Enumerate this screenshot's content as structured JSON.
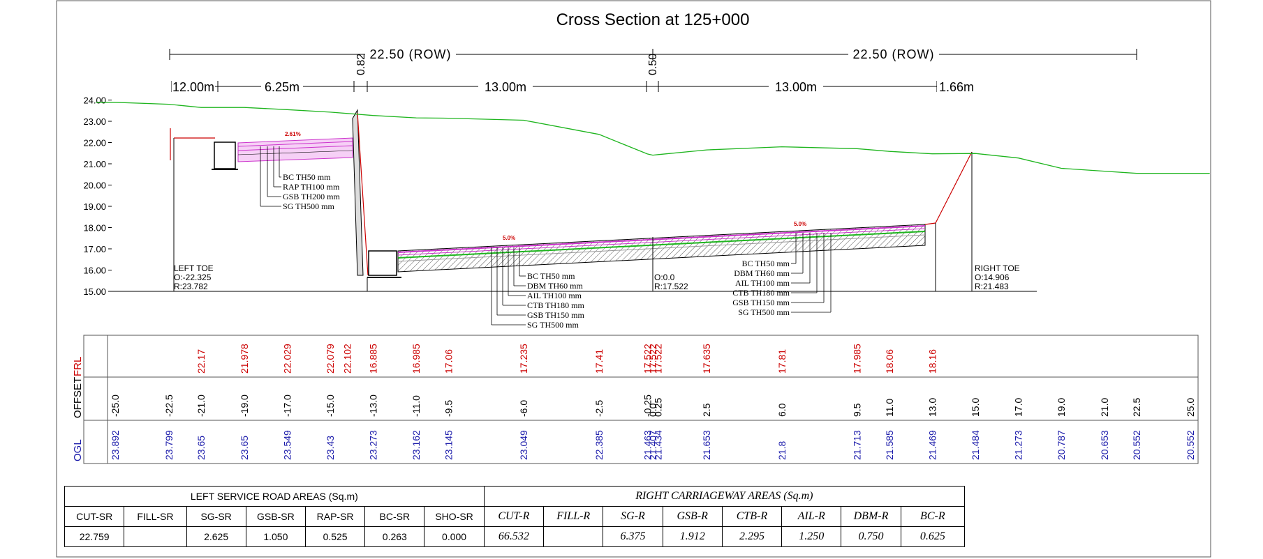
{
  "title": "Cross Section at 125+000",
  "dimensions": {
    "row_left": "22.50 (ROW)",
    "row_right": "22.50 (ROW)",
    "segments": [
      "12.00m",
      "6.25m",
      "0.82",
      "13.00m",
      "0.50",
      "13.00m",
      "1.66m"
    ]
  },
  "y_axis": {
    "min": 15.0,
    "max": 24.0,
    "ticks": [
      "24.00",
      "23.00",
      "22.00",
      "21.00",
      "20.00",
      "19.00",
      "18.00",
      "17.00",
      "16.00",
      "15.00"
    ]
  },
  "left_toe": {
    "label": "LEFT TOE",
    "offset": "O:-22.325",
    "level": "R:23.782"
  },
  "right_toe": {
    "label": "RIGHT TOE",
    "offset": "O:14.906",
    "level": "R:21.483"
  },
  "centre": {
    "offset": "O:0.0",
    "level": "R:17.522"
  },
  "slope_labels": {
    "service_road": "2.61%",
    "left_cw": "5.0%",
    "right_cw": "5.0%"
  },
  "layers_service_road": [
    "BC TH50 mm",
    "RAP TH100 mm",
    "GSB TH200 mm",
    "SG TH500 mm"
  ],
  "layers_left_cw": [
    "BC TH50 mm",
    "DBM TH60 mm",
    "AIL TH100 mm",
    "CTB TH180 mm",
    "GSB TH150 mm",
    "SG TH500 mm"
  ],
  "layers_right_cw": [
    "BC TH50 mm",
    "DBM TH60 mm",
    "AIL TH100 mm",
    "CTB TH180 mm",
    "GSB TH150 mm",
    "SG TH500 mm"
  ],
  "chart_data": {
    "type": "line",
    "title": "Cross Section at 125+000",
    "ylim": [
      15.0,
      24.0
    ],
    "series": [
      {
        "name": "OGL",
        "x": [
          -25.0,
          -22.5,
          -21.0,
          -19.0,
          -17.0,
          -15.0,
          -13.0,
          -11.0,
          -9.5,
          -6.0,
          -2.5,
          -0.25,
          0.0,
          0.25,
          2.5,
          6.0,
          9.5,
          11.0,
          13.0,
          15.0,
          17.0,
          19.0,
          21.0,
          22.5,
          25.0
        ],
        "y": [
          23.892,
          23.799,
          23.65,
          23.65,
          23.549,
          23.43,
          23.273,
          23.162,
          23.145,
          23.049,
          22.385,
          21.463,
          21.407,
          21.434,
          21.653,
          21.8,
          21.713,
          21.585,
          21.469,
          21.484,
          21.273,
          20.787,
          20.653,
          20.552,
          20.552
        ]
      },
      {
        "name": "FRL",
        "x": [
          -21.0,
          -19.0,
          -17.0,
          -15.0,
          -14.2,
          -13.0,
          -11.0,
          -9.5,
          -6.0,
          -2.5,
          -0.25,
          0.0,
          0.25,
          2.5,
          6.0,
          9.5,
          11.0,
          13.0
        ],
        "y": [
          22.17,
          21.978,
          22.029,
          22.079,
          22.102,
          16.885,
          16.985,
          17.06,
          17.235,
          17.41,
          17.522,
          17.522,
          17.522,
          17.635,
          17.81,
          17.985,
          18.06,
          18.16
        ]
      }
    ]
  },
  "band": {
    "rows": [
      "FRL",
      "OFFSET",
      "OGL"
    ],
    "frl": [
      {
        "v": "22.17",
        "x": -21.0
      },
      {
        "v": "21.978",
        "x": -19.0
      },
      {
        "v": "22.029",
        "x": -17.0
      },
      {
        "v": "22.079",
        "x": -15.0
      },
      {
        "v": "22.102",
        "x": -14.2
      },
      {
        "v": "16.885",
        "x": -13.0
      },
      {
        "v": "16.985",
        "x": -11.0
      },
      {
        "v": "17.06",
        "x": -9.5
      },
      {
        "v": "17.235",
        "x": -6.0
      },
      {
        "v": "17.41",
        "x": -2.5
      },
      {
        "v": "17.522",
        "x": -0.25
      },
      {
        "v": "17.522",
        "x": 0.0
      },
      {
        "v": "17.522",
        "x": 0.25
      },
      {
        "v": "17.635",
        "x": 2.5
      },
      {
        "v": "17.81",
        "x": 6.0
      },
      {
        "v": "17.985",
        "x": 9.5
      },
      {
        "v": "18.06",
        "x": 11.0
      },
      {
        "v": "18.16",
        "x": 13.0
      }
    ],
    "offset": [
      "-25.0",
      "-22.5",
      "-21.0",
      "-19.0",
      "-17.0",
      "-15.0",
      "-13.0",
      "-11.0",
      "-9.5",
      "-6.0",
      "-2.5",
      "-0.25",
      "0.0",
      "0.25",
      "2.5",
      "6.0",
      "9.5",
      "11.0",
      "13.0",
      "15.0",
      "17.0",
      "19.0",
      "21.0",
      "22.5",
      "25.0"
    ],
    "ogl": [
      "23.892",
      "23.799",
      "23.65",
      "23.65",
      "23.549",
      "23.43",
      "23.273",
      "23.162",
      "23.145",
      "23.049",
      "22.385",
      "21.463",
      "21.407",
      "21.434",
      "21.653",
      "21.8",
      "21.713",
      "21.585",
      "21.469",
      "21.484",
      "21.273",
      "20.787",
      "20.653",
      "20.552",
      "20.552"
    ]
  },
  "areas": {
    "left_title": "LEFT SERVICE ROAD AREAS (Sq.m)",
    "right_title": "RIGHT CARRIAGEWAY AREAS (Sq.m)",
    "left_headers": [
      "CUT-SR",
      "FILL-SR",
      "SG-SR",
      "GSB-SR",
      "RAP-SR",
      "BC-SR",
      "SHO-SR"
    ],
    "left_values": [
      "22.759",
      "",
      "2.625",
      "1.050",
      "0.525",
      "0.263",
      "0.000"
    ],
    "right_headers": [
      "CUT-R",
      "FILL-R",
      "SG-R",
      "GSB-R",
      "CTB-R",
      "AIL-R",
      "DBM-R",
      "BC-R"
    ],
    "right_values": [
      "66.532",
      "",
      "6.375",
      "1.912",
      "2.295",
      "1.250",
      "0.750",
      "0.625"
    ]
  },
  "colors": {
    "ogl": "#1fb51f",
    "frl_text": "#cc0000",
    "ogl_text": "#1a1aaa",
    "cut_line": "#cc0000",
    "layer_pink": "#cc33cc"
  }
}
